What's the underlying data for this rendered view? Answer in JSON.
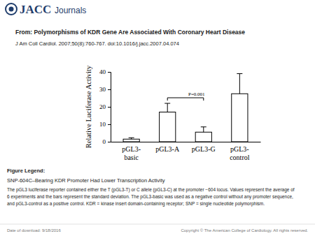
{
  "header": {
    "brand": "JACC",
    "brand_sub": "Journals",
    "from": "From: Polymorphisms of KDR Gene Are Associated With Coronary Heart Disease",
    "citation": "J Am Coll Cardiol. 2007;50(8):760-767. doi:10.1016/j.jacc.2007.04.074"
  },
  "chart_data": {
    "type": "bar",
    "categories": [
      "pGL3-\nbasic",
      "pGL3-A",
      "pGL3-G",
      "pGL3-\ncontrol"
    ],
    "values": [
      1.5,
      17,
      5.5,
      27.5
    ],
    "errors": [
      0.8,
      5,
      3,
      11.5
    ],
    "color": "#ffffff",
    "ylabel": "Relative Luciferase Activity",
    "ylim": [
      0,
      40
    ],
    "yticks": [
      0,
      10,
      20,
      30,
      40
    ],
    "grid": false,
    "annotation": "P=0.001"
  },
  "figure_legend": {
    "heading": "Figure Legend:",
    "title": "SNP-604C–Bearing KDR Promoter Had Lower Transcription Activity",
    "lines": [
      "The pGL3 luciferase reporter contained either the T (pGL3-T) or C allele (pGL3-C) at the promoter −604 locus. Values represent the average of",
      "6 experiments and the bars represent the standard deviation. The pGL3-basic was used as a negative control without any promoter sequence,",
      "and pGL3-control as a positive control. KDR = kinase insert domain-containing receptor; SNP = single nucleotide polymorphism."
    ]
  },
  "footer": {
    "date": "Date of download: 9/18/2016",
    "copyright": "Copyright © The American College of Cardiology. All rights reserved."
  }
}
